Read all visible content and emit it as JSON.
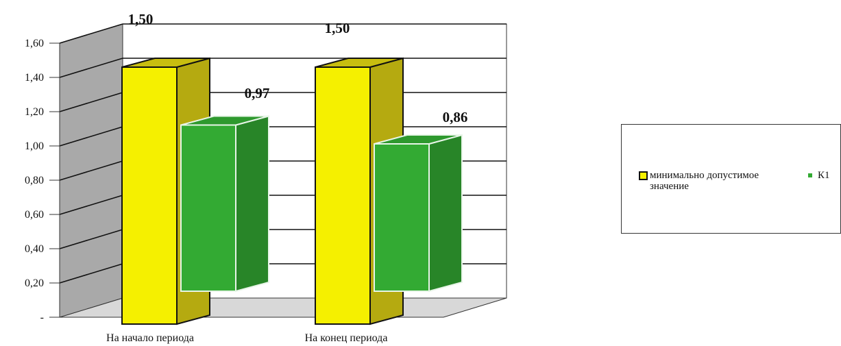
{
  "chart_data": {
    "type": "bar",
    "categories": [
      "На начало периода",
      "На конец периода"
    ],
    "series": [
      {
        "name": "минимально допустимое значение",
        "values": [
          1.5,
          1.5
        ],
        "color": "#f5f000"
      },
      {
        "name": "К1",
        "values": [
          0.97,
          0.86
        ],
        "color": "#33aa33"
      }
    ],
    "data_labels": [
      "1,50",
      "0,97",
      "1,50",
      "0,86"
    ],
    "y_ticks": [
      "-",
      "0,20",
      "0,40",
      "0,60",
      "0,80",
      "1,00",
      "1,20",
      "1,40",
      "1,60"
    ],
    "ylim": [
      0,
      1.6
    ],
    "grid": true,
    "legend_position": "right",
    "style": "3d-bar"
  },
  "legend": {
    "items": [
      {
        "label": "минимально допустимое значение"
      },
      {
        "label": "К1"
      }
    ]
  }
}
